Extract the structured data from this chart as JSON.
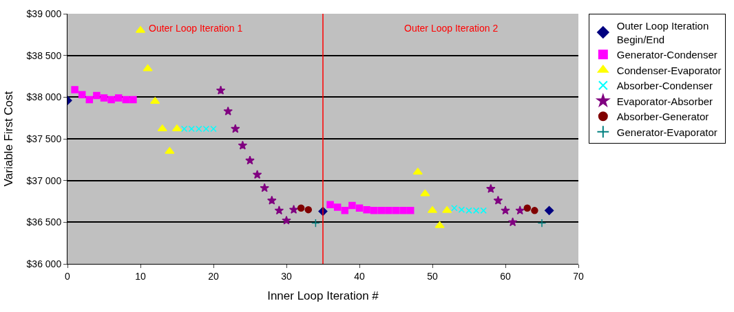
{
  "chart_data": {
    "type": "scatter",
    "xlabel": "Inner Loop Iteration #",
    "ylabel": "Variable First Cost",
    "xlim": [
      0,
      70
    ],
    "xticks": [
      0,
      10,
      20,
      30,
      40,
      50,
      60,
      70
    ],
    "ylim": [
      36000,
      39000
    ],
    "yticks": [
      {
        "value": 36000,
        "label": "$36 000"
      },
      {
        "value": 36500,
        "label": "$36 500"
      },
      {
        "value": 37000,
        "label": "$37 000"
      },
      {
        "value": 37500,
        "label": "$37 500"
      },
      {
        "value": 38000,
        "label": "$38 000"
      },
      {
        "value": 38500,
        "label": "$38 500"
      },
      {
        "value": 39000,
        "label": "$39 000"
      }
    ],
    "grid": "y",
    "legend": "right",
    "ref_lines": [
      {
        "axis": "x",
        "value": 35,
        "color": "#ff0000"
      }
    ],
    "annotations": [
      "Outer Loop Iteration 1",
      "Outer Loop Iteration 2"
    ],
    "series": [
      {
        "name": "Outer Loop Iteration Begin/End",
        "color": "#000080",
        "marker": "diamond",
        "x": [
          0,
          35,
          66
        ],
        "values": [
          37960,
          36630,
          36640
        ]
      },
      {
        "name": "Generator-Condenser",
        "color": "#ff00ff",
        "marker": "square",
        "x": [
          1,
          2,
          3,
          4,
          5,
          6,
          7,
          8,
          9,
          36,
          37,
          38,
          39,
          40,
          41,
          42,
          43,
          44,
          45,
          46,
          47
        ],
        "values": [
          38090,
          38030,
          37970,
          38020,
          37990,
          37970,
          37990,
          37970,
          37970,
          36710,
          36680,
          36640,
          36700,
          36670,
          36650,
          36640,
          36640,
          36640,
          36640,
          36640,
          36640
        ]
      },
      {
        "name": "Condenser-Evaporator",
        "color": "#ffff00",
        "marker": "triangle",
        "x": [
          10,
          11,
          12,
          13,
          14,
          15,
          48,
          49,
          50,
          51,
          52
        ],
        "values": [
          38800,
          38340,
          37950,
          37620,
          37350,
          37620,
          37100,
          36840,
          36640,
          36460,
          36640
        ]
      },
      {
        "name": "Absorber-Condenser",
        "color": "#00ffff",
        "marker": "cross",
        "x": [
          16,
          17,
          18,
          19,
          20,
          53,
          54,
          55,
          56,
          57
        ],
        "values": [
          37620,
          37620,
          37620,
          37620,
          37620,
          36670,
          36650,
          36640,
          36640,
          36640
        ]
      },
      {
        "name": "Evaporator-Absorber",
        "color": "#800080",
        "marker": "star",
        "x": [
          21,
          22,
          23,
          24,
          25,
          26,
          27,
          28,
          29,
          30,
          31,
          58,
          59,
          60,
          61,
          62
        ],
        "values": [
          38080,
          37830,
          37620,
          37420,
          37240,
          37070,
          36910,
          36760,
          36640,
          36520,
          36650,
          36900,
          36760,
          36640,
          36500,
          36640
        ]
      },
      {
        "name": "Absorber-Generator",
        "color": "#800000",
        "marker": "circle",
        "x": [
          32,
          33,
          63,
          64
        ],
        "values": [
          36670,
          36650,
          36670,
          36640
        ]
      },
      {
        "name": "Generator-Evaporator",
        "color": "#008080",
        "marker": "plus",
        "x": [
          34,
          65
        ],
        "values": [
          36490,
          36490
        ]
      }
    ]
  }
}
